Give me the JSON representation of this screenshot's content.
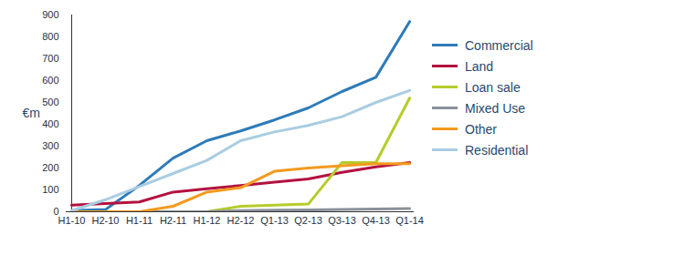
{
  "chart_data": {
    "type": "line",
    "ylabel": "€m",
    "categories": [
      "H1-10",
      "H2-10",
      "H1-11",
      "H2-11",
      "H1-12",
      "H2-12",
      "Q1-13",
      "Q2-13",
      "Q3-13",
      "Q4-13",
      "Q1-14"
    ],
    "series": [
      {
        "name": "Commercial",
        "color": "#2e7bb8",
        "values": [
          5,
          10,
          120,
          245,
          325,
          370,
          420,
          475,
          550,
          615,
          870
        ]
      },
      {
        "name": "Land",
        "color": "#b3123f",
        "values": [
          30,
          38,
          45,
          90,
          105,
          120,
          135,
          150,
          180,
          205,
          225
        ]
      },
      {
        "name": "Loan sale",
        "color": "#b6cc2b",
        "values": [
          0,
          0,
          0,
          0,
          0,
          25,
          30,
          35,
          225,
          225,
          520
        ]
      },
      {
        "name": "Mixed Use",
        "color": "#8a909a",
        "values": [
          0,
          0,
          0,
          0,
          0,
          5,
          7,
          8,
          10,
          12,
          15
        ]
      },
      {
        "name": "Other",
        "color": "#f39a1e",
        "values": [
          0,
          0,
          0,
          25,
          90,
          110,
          185,
          200,
          210,
          220,
          220
        ]
      },
      {
        "name": "Residential",
        "color": "#a9cde1",
        "values": [
          5,
          55,
          115,
          175,
          235,
          325,
          365,
          395,
          435,
          500,
          555
        ]
      }
    ],
    "ylim": [
      0,
      900
    ],
    "yticks": [
      0,
      100,
      200,
      300,
      400,
      500,
      600,
      700,
      800,
      900
    ],
    "grid": false,
    "legend": "right"
  }
}
